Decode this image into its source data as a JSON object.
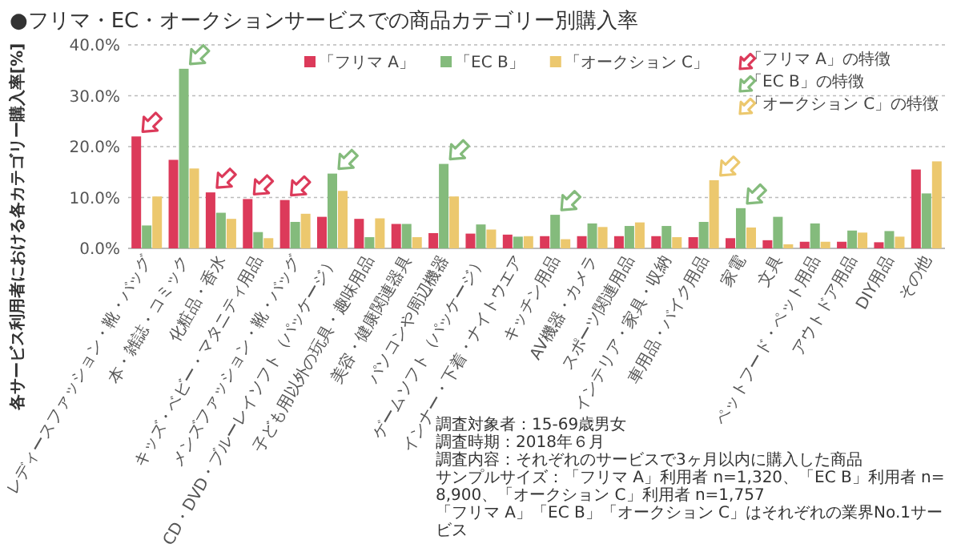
{
  "chart_data": {
    "type": "bar",
    "title": "●フリマ・EC・オークションサービスでの商品カテゴリー別購入率",
    "ylabel": "各サービス利用者における各カテゴリー購入率[%]",
    "categories": [
      "レディースファッション・靴・バッグ",
      "本・雑誌・コミック",
      "化粧品・香水",
      "キッズ・ベビー・マタニティ用品",
      "メンズファッション・靴・バッグ",
      "CD・DVD・ブルーレイソフト（パッケージ）",
      "子ども用以外の玩具・趣味用品",
      "美容・健康関連器具",
      "パソコンや周辺機器",
      "ゲームソフト（パッケージ）",
      "インナー・下着・ナイトウエア",
      "キッチン用品",
      "AV機器・カメラ",
      "スポーツ関連用品",
      "インテリア・家具・収納",
      "車用品・バイク用品",
      "家電",
      "文具",
      "ペットフード・ペット用品",
      "アウトドア用品",
      "DIY用品",
      "その他"
    ],
    "series": [
      {
        "name": "「フリマ A」",
        "color": "#dc3a5a",
        "values": [
          22.0,
          17.4,
          11.0,
          9.7,
          9.5,
          6.2,
          5.8,
          4.8,
          3.0,
          2.9,
          2.7,
          2.4,
          2.4,
          2.4,
          2.4,
          2.2,
          2.0,
          1.6,
          1.3,
          1.3,
          1.2,
          15.5
        ]
      },
      {
        "name": "「EC B」",
        "color": "#84bb7c",
        "values": [
          4.5,
          35.3,
          7.0,
          3.2,
          5.2,
          14.7,
          2.2,
          4.8,
          16.6,
          4.7,
          2.3,
          6.6,
          4.9,
          4.4,
          4.4,
          5.2,
          7.9,
          6.2,
          4.9,
          3.5,
          3.4,
          10.8
        ]
      },
      {
        "name": "「オークション C」",
        "color": "#ecc86e",
        "values": [
          10.2,
          15.7,
          5.8,
          2.0,
          6.8,
          11.3,
          5.9,
          2.2,
          10.2,
          3.7,
          2.4,
          1.8,
          4.2,
          5.1,
          2.2,
          13.4,
          4.1,
          0.8,
          1.3,
          3.1,
          2.3,
          17.1
        ]
      }
    ],
    "ylim": [
      0,
      40
    ],
    "yticks": [
      {
        "value": 0,
        "label": "0.0%"
      },
      {
        "value": 10,
        "label": "10.0%"
      },
      {
        "value": 20,
        "label": "20.0%"
      },
      {
        "value": 30,
        "label": "30.0%"
      },
      {
        "value": 40,
        "label": "40.0%"
      }
    ],
    "grid": "y",
    "legend": "top",
    "annotations": [
      "「フリマ A」の特徴",
      "「EC B」の特徴",
      "「オークション C」の特徴",
      "調査対象者：15-69歳男女",
      "調査時期：2018年６月",
      "調査内容：それぞれのサービスで3ヶ月以内に購入した商品",
      "サンプルサイズ：「フリマ A」利用者 n=1,320、「EC B」利用者 n=8,900、「オークション C」利用者 n=1,757",
      "「フリマ A」「EC B」「オークション C」はそれぞれの業界No.1サービス"
    ]
  }
}
